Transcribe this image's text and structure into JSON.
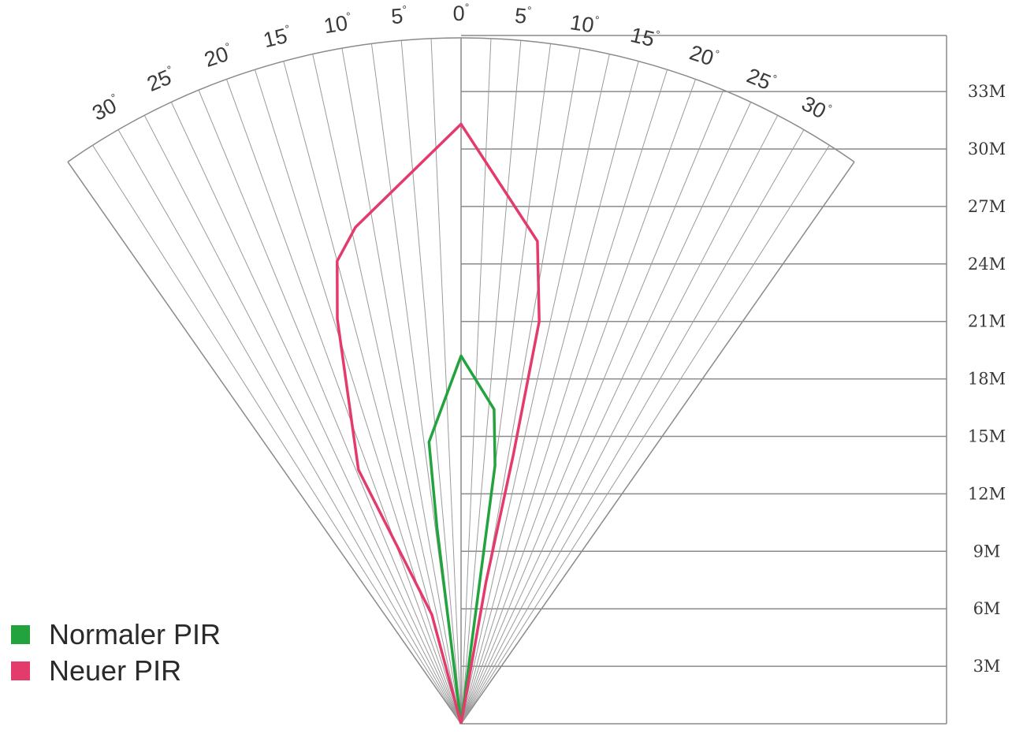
{
  "chart_data": {
    "type": "polar-fan",
    "max_angle_deg": 35,
    "angles": [
      30,
      25,
      20,
      15,
      10,
      5,
      0,
      5,
      10,
      15,
      20,
      25,
      30
    ],
    "angle_unit": "°",
    "distances": [
      "3M",
      "6M",
      "9M",
      "12M",
      "15M",
      "18M",
      "21M",
      "24M",
      "27M",
      "30M",
      "33M"
    ],
    "series": [
      {
        "name": "Normaler PIR",
        "color": "#22a33d",
        "points": [
          {
            "angle": 0,
            "dist": 0
          },
          {
            "angle": -7,
            "dist": 10.3
          },
          {
            "angle": -6.5,
            "dist": 14.8
          },
          {
            "angle": 0,
            "dist": 19.2
          },
          {
            "angle": 6,
            "dist": 16.5
          },
          {
            "angle": 7.5,
            "dist": 13.6
          },
          {
            "angle": 0,
            "dist": 0
          }
        ]
      },
      {
        "name": "Neuer PIR",
        "color": "#e33b6b",
        "points": [
          {
            "angle": 0,
            "dist": 0
          },
          {
            "angle": -15,
            "dist": 5.9
          },
          {
            "angle": -22,
            "dist": 14.3
          },
          {
            "angle": -17,
            "dist": 22.1
          },
          {
            "angle": -15,
            "dist": 25.0
          },
          {
            "angle": -12,
            "dist": 26.5
          },
          {
            "angle": 0,
            "dist": 31.3
          },
          {
            "angle": 9,
            "dist": 25.5
          },
          {
            "angle": 11,
            "dist": 21.4
          },
          {
            "angle": 11,
            "dist": 14.3
          },
          {
            "angle": 10,
            "dist": 7.5
          },
          {
            "angle": 0,
            "dist": 0
          }
        ]
      }
    ]
  },
  "legend": {
    "items": [
      {
        "label": "Normaler PIR",
        "color": "#22a33d"
      },
      {
        "label": "Neuer PIR",
        "color": "#e33b6b"
      }
    ]
  }
}
